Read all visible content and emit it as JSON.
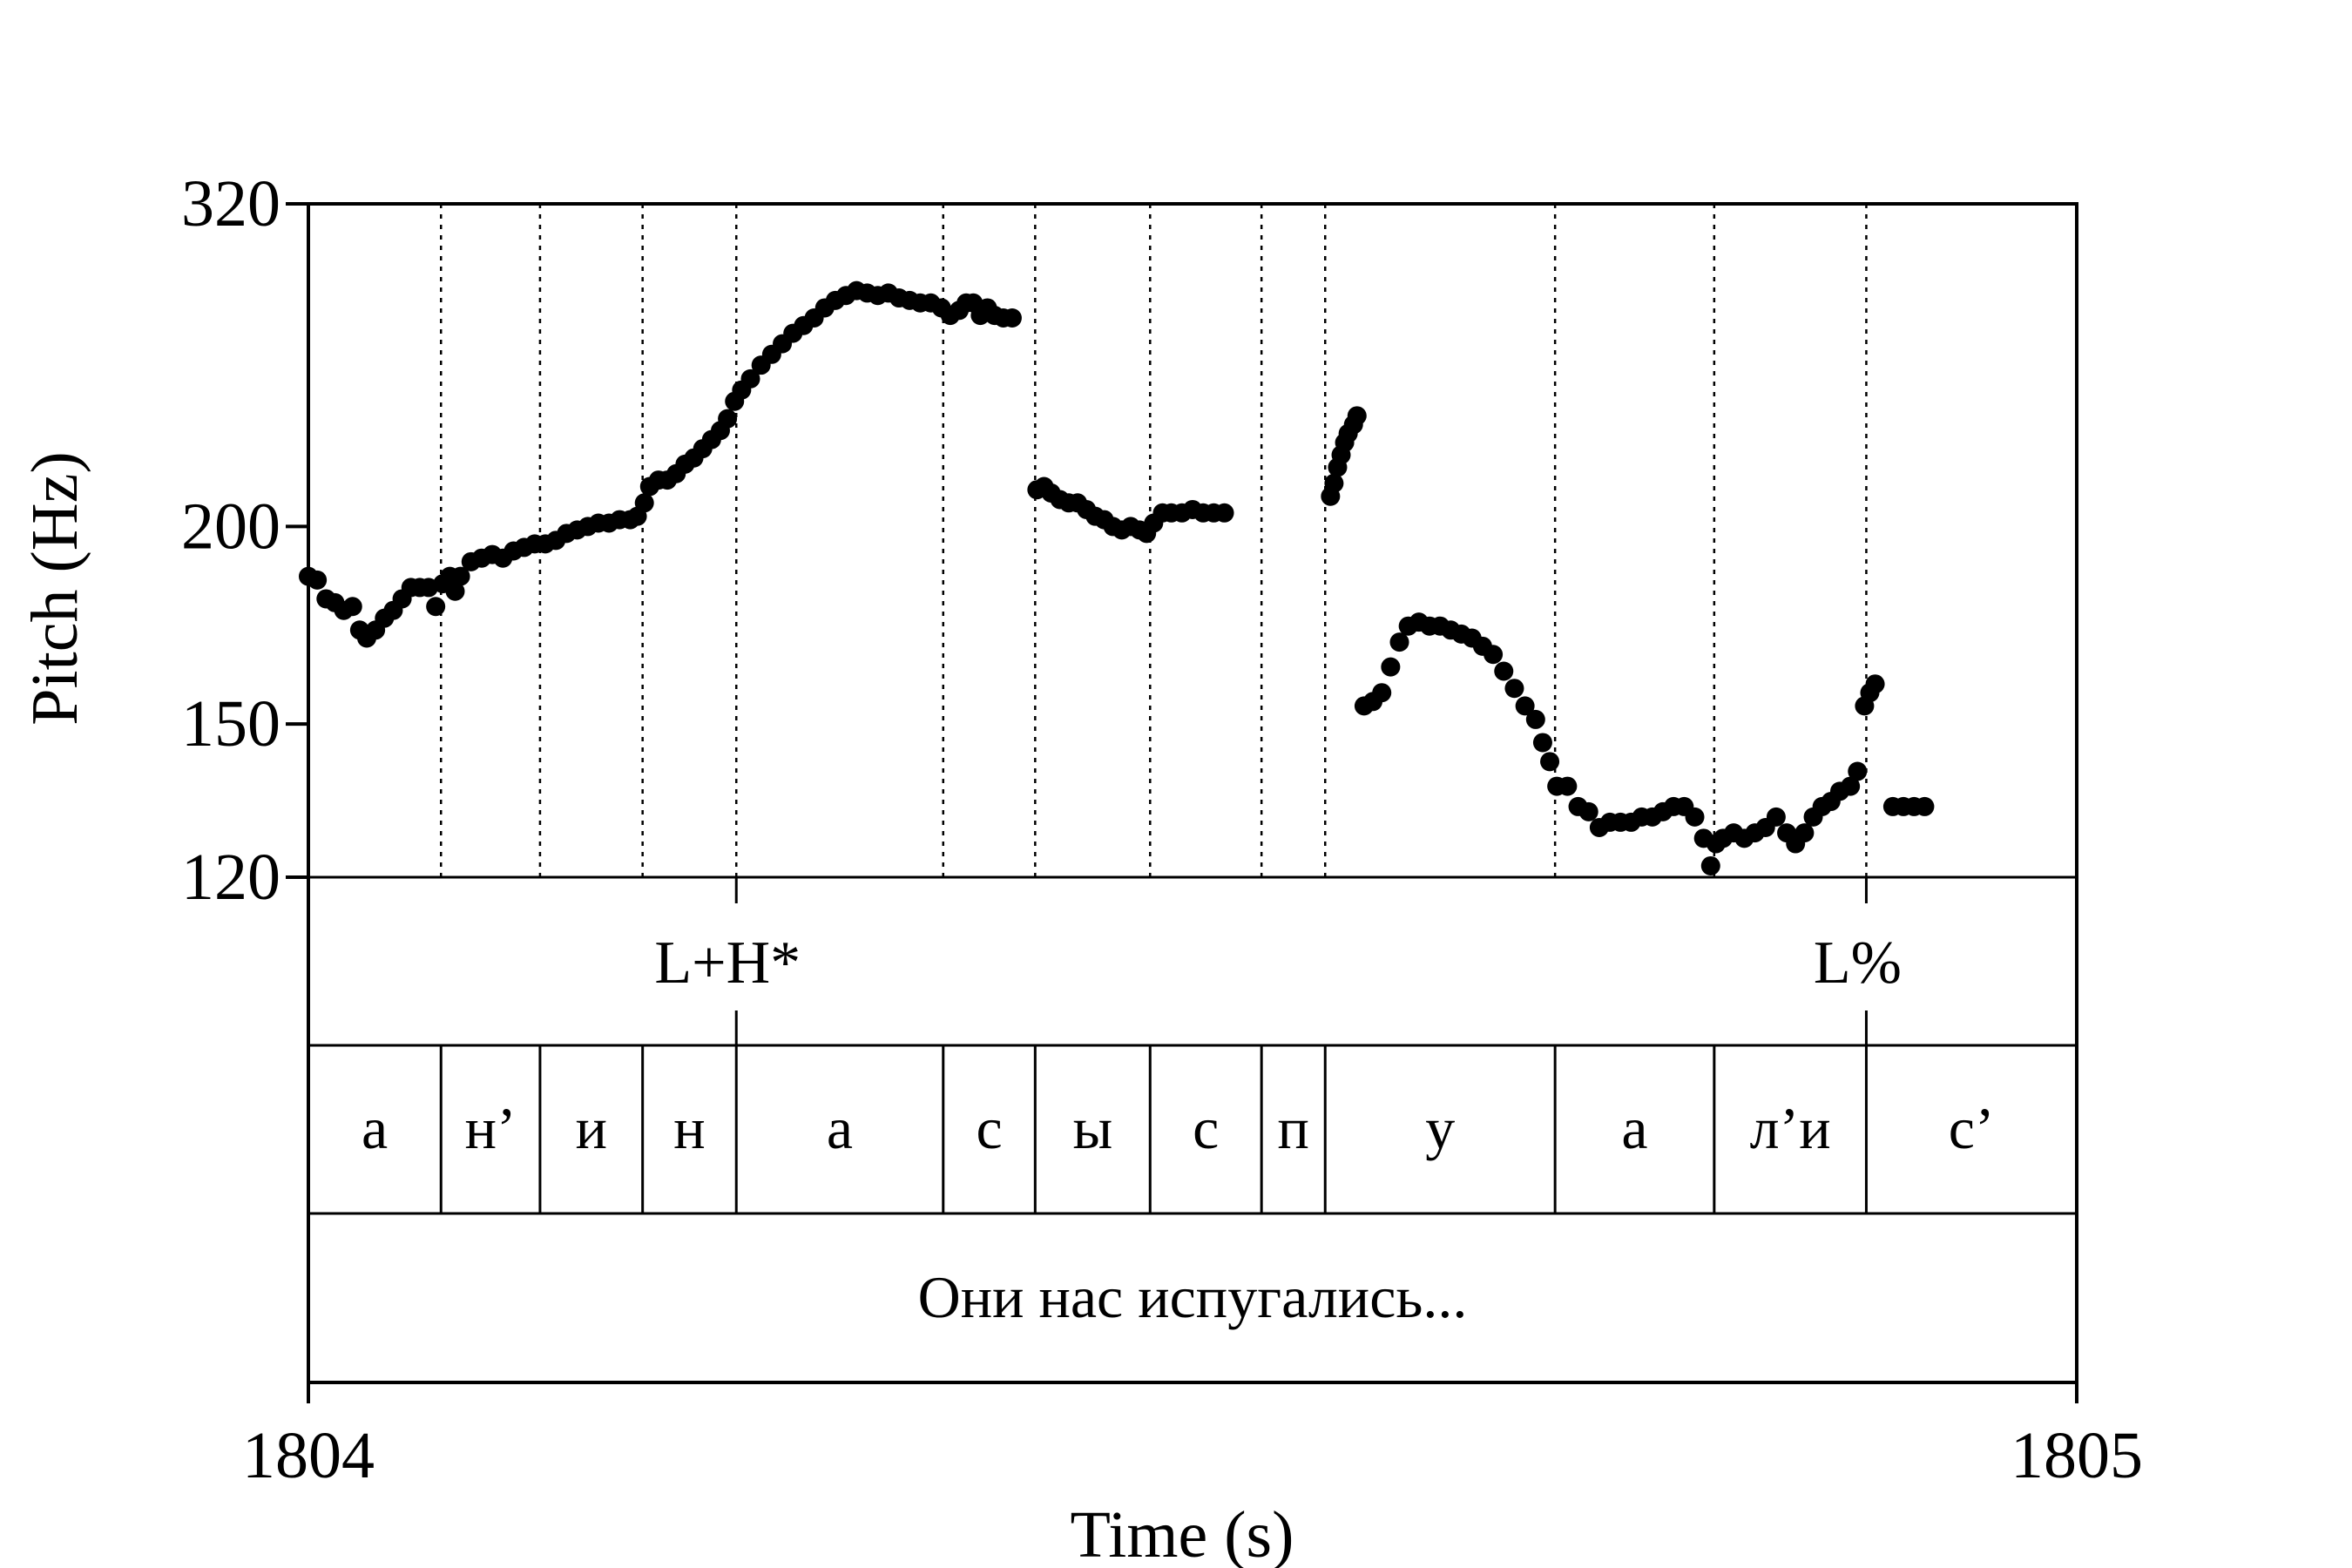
{
  "chart_data": {
    "type": "scatter",
    "title": "",
    "xlabel": "Time (s)",
    "ylabel": "Pitch (Hz)",
    "xlim": [
      1804,
      1805
    ],
    "x_ticks": [
      "1804",
      "1805"
    ],
    "ylim": [
      120,
      320
    ],
    "y_scale": "log",
    "y_ticks": [
      {
        "value": 320,
        "label": "320"
      },
      {
        "value": 200,
        "label": "200"
      },
      {
        "value": 150,
        "label": "150"
      },
      {
        "value": 120,
        "label": "120"
      }
    ],
    "grid": false,
    "marker_color": "#000000",
    "boundaries": [
      1804.075,
      1804.131,
      1804.189,
      1804.242,
      1804.359,
      1804.411,
      1804.476,
      1804.539,
      1804.575,
      1804.705,
      1804.795,
      1804.881
    ],
    "tones": [
      {
        "time": 1804.242,
        "label": "L+H*"
      },
      {
        "time": 1804.881,
        "label": "L%"
      }
    ],
    "segments": [
      {
        "label": "а",
        "start": 1804.0,
        "end": 1804.075
      },
      {
        "label": "н’",
        "start": 1804.075,
        "end": 1804.131
      },
      {
        "label": "и",
        "start": 1804.131,
        "end": 1804.189
      },
      {
        "label": "н",
        "start": 1804.189,
        "end": 1804.242
      },
      {
        "label": "а",
        "start": 1804.242,
        "end": 1804.359
      },
      {
        "label": "с",
        "start": 1804.359,
        "end": 1804.411
      },
      {
        "label": "ы",
        "start": 1804.411,
        "end": 1804.476
      },
      {
        "label": "с",
        "start": 1804.476,
        "end": 1804.539
      },
      {
        "label": "п",
        "start": 1804.539,
        "end": 1804.575
      },
      {
        "label": "у",
        "start": 1804.575,
        "end": 1804.705
      },
      {
        "label": "а",
        "start": 1804.705,
        "end": 1804.795
      },
      {
        "label": "л’и",
        "start": 1804.795,
        "end": 1804.881
      },
      {
        "label": "с’",
        "start": 1804.881,
        "end": 1805.0
      }
    ],
    "sentence": "Они нас испугались...",
    "series": [
      {
        "points": [
          [
            1804.0,
            186
          ],
          [
            1804.005,
            185
          ],
          [
            1804.01,
            180
          ],
          [
            1804.015,
            179
          ],
          [
            1804.02,
            177
          ],
          [
            1804.025,
            178
          ],
          [
            1804.029,
            172
          ],
          [
            1804.033,
            170
          ],
          [
            1804.038,
            172
          ],
          [
            1804.043,
            175
          ],
          [
            1804.048,
            177
          ],
          [
            1804.053,
            180
          ],
          [
            1804.058,
            183
          ],
          [
            1804.063,
            183
          ],
          [
            1804.068,
            183
          ],
          [
            1804.072,
            178
          ],
          [
            1804.076,
            184
          ],
          [
            1804.08,
            186
          ],
          [
            1804.083,
            182
          ],
          [
            1804.086,
            186
          ],
          [
            1804.092,
            190
          ],
          [
            1804.098,
            191
          ],
          [
            1804.104,
            192
          ],
          [
            1804.11,
            191
          ],
          [
            1804.116,
            193
          ],
          [
            1804.122,
            194
          ],
          [
            1804.128,
            195
          ],
          [
            1804.134,
            195
          ],
          [
            1804.14,
            196
          ],
          [
            1804.146,
            198
          ],
          [
            1804.152,
            199
          ],
          [
            1804.158,
            200
          ],
          [
            1804.164,
            201
          ],
          [
            1804.17,
            201
          ],
          [
            1804.176,
            202
          ],
          [
            1804.182,
            202
          ],
          [
            1804.186,
            203
          ],
          [
            1804.19,
            207
          ],
          [
            1804.193,
            212
          ],
          [
            1804.198,
            214
          ],
          [
            1804.203,
            214
          ],
          [
            1804.208,
            216
          ],
          [
            1804.213,
            219
          ],
          [
            1804.218,
            221
          ],
          [
            1804.223,
            224
          ],
          [
            1804.228,
            227
          ],
          [
            1804.233,
            230
          ],
          [
            1804.237,
            234
          ],
          [
            1804.241,
            240
          ],
          [
            1804.245,
            244
          ],
          [
            1804.25,
            248
          ],
          [
            1804.256,
            253
          ],
          [
            1804.262,
            257
          ],
          [
            1804.268,
            261
          ],
          [
            1804.274,
            265
          ],
          [
            1804.28,
            268
          ],
          [
            1804.286,
            271
          ],
          [
            1804.292,
            275
          ],
          [
            1804.298,
            278
          ],
          [
            1804.304,
            280
          ],
          [
            1804.31,
            282
          ],
          [
            1804.316,
            281
          ],
          [
            1804.322,
            280
          ],
          [
            1804.328,
            281
          ],
          [
            1804.334,
            279
          ],
          [
            1804.34,
            278
          ],
          [
            1804.346,
            277
          ],
          [
            1804.352,
            277
          ],
          [
            1804.358,
            275
          ],
          [
            1804.363,
            272
          ],
          [
            1804.368,
            274
          ],
          [
            1804.372,
            277
          ],
          [
            1804.376,
            277
          ],
          [
            1804.38,
            272
          ],
          [
            1804.384,
            275
          ],
          [
            1804.388,
            272
          ],
          [
            1804.393,
            271
          ],
          [
            1804.398,
            271
          ],
          [
            1804.412,
            211
          ],
          [
            1804.416,
            212
          ],
          [
            1804.42,
            210
          ],
          [
            1804.425,
            208
          ],
          [
            1804.43,
            207
          ],
          [
            1804.435,
            207
          ],
          [
            1804.44,
            205
          ],
          [
            1804.445,
            203
          ],
          [
            1804.45,
            202
          ],
          [
            1804.455,
            200
          ],
          [
            1804.46,
            199
          ],
          [
            1804.465,
            200
          ],
          [
            1804.47,
            199
          ],
          [
            1804.474,
            198
          ],
          [
            1804.478,
            201
          ],
          [
            1804.483,
            204
          ],
          [
            1804.488,
            204
          ],
          [
            1804.494,
            204
          ],
          [
            1804.5,
            205
          ],
          [
            1804.506,
            204
          ],
          [
            1804.512,
            204
          ],
          [
            1804.518,
            204
          ],
          [
            1804.578,
            209
          ],
          [
            1804.58,
            213
          ],
          [
            1804.582,
            218
          ],
          [
            1804.584,
            222
          ],
          [
            1804.586,
            226
          ],
          [
            1804.588,
            229
          ],
          [
            1804.591,
            232
          ],
          [
            1804.593,
            235
          ],
          [
            1804.597,
            154
          ],
          [
            1804.602,
            155
          ],
          [
            1804.607,
            157
          ],
          [
            1804.612,
            163
          ],
          [
            1804.617,
            169
          ],
          [
            1804.622,
            173
          ],
          [
            1804.628,
            174
          ],
          [
            1804.634,
            173
          ],
          [
            1804.64,
            173
          ],
          [
            1804.646,
            172
          ],
          [
            1804.652,
            171
          ],
          [
            1804.658,
            170
          ],
          [
            1804.664,
            168
          ],
          [
            1804.67,
            166
          ],
          [
            1804.676,
            162
          ],
          [
            1804.682,
            158
          ],
          [
            1804.688,
            154
          ],
          [
            1804.694,
            151
          ],
          [
            1804.698,
            146
          ],
          [
            1804.702,
            142
          ],
          [
            1804.706,
            137
          ],
          [
            1804.712,
            137
          ],
          [
            1804.718,
            133
          ],
          [
            1804.724,
            132
          ],
          [
            1804.73,
            129
          ],
          [
            1804.736,
            130
          ],
          [
            1804.742,
            130
          ],
          [
            1804.748,
            130
          ],
          [
            1804.754,
            131
          ],
          [
            1804.76,
            131
          ],
          [
            1804.766,
            132
          ],
          [
            1804.772,
            133
          ],
          [
            1804.778,
            133
          ],
          [
            1804.784,
            131
          ],
          [
            1804.789,
            127
          ],
          [
            1804.793,
            122
          ],
          [
            1804.796,
            126
          ],
          [
            1804.8,
            127
          ],
          [
            1804.806,
            128
          ],
          [
            1804.812,
            127
          ],
          [
            1804.818,
            128
          ],
          [
            1804.824,
            129
          ],
          [
            1804.83,
            131
          ],
          [
            1804.836,
            128
          ],
          [
            1804.841,
            126
          ],
          [
            1804.846,
            128
          ],
          [
            1804.851,
            131
          ],
          [
            1804.856,
            133
          ],
          [
            1804.861,
            134
          ],
          [
            1804.866,
            136
          ],
          [
            1804.872,
            137
          ],
          [
            1804.876,
            140
          ],
          [
            1804.88,
            154
          ],
          [
            1804.883,
            157
          ],
          [
            1804.886,
            159
          ],
          [
            1804.896,
            133
          ],
          [
            1804.902,
            133
          ],
          [
            1804.908,
            133
          ],
          [
            1804.914,
            133
          ]
        ]
      }
    ]
  }
}
